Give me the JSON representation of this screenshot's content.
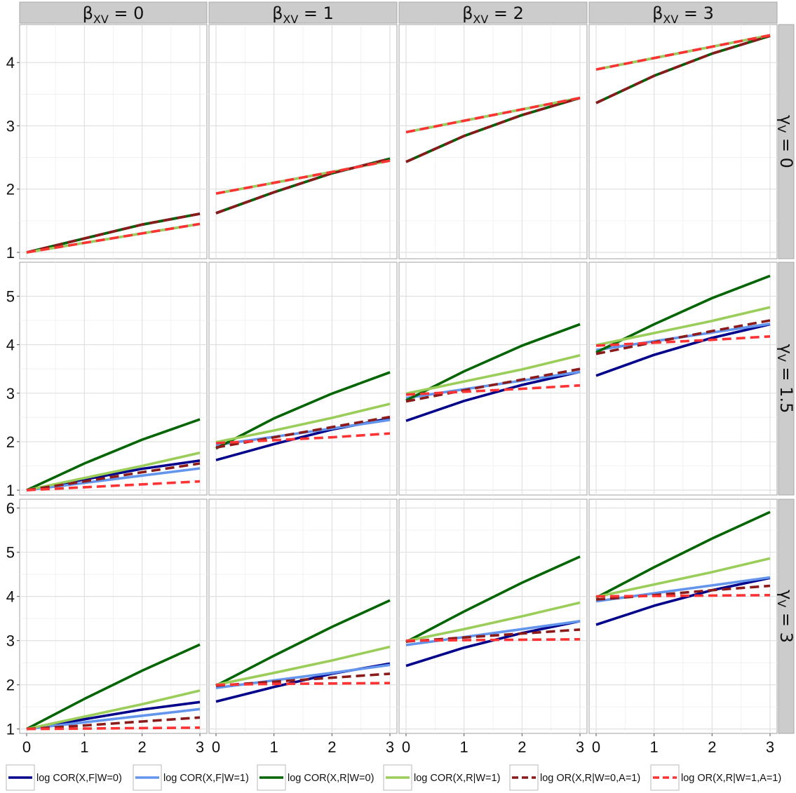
{
  "chart_data": {
    "type": "line",
    "layout": "facet_grid",
    "x": [
      0,
      1,
      2,
      3
    ],
    "xticks": [
      "0",
      "1",
      "2",
      "3"
    ],
    "col_facet": {
      "label_main": "β",
      "label_sub": "XV",
      "levels": [
        "0",
        "1",
        "2",
        "3"
      ]
    },
    "row_facet": {
      "label_main": "γ",
      "label_sub": "V",
      "levels": [
        "0",
        "1.5",
        "3"
      ]
    },
    "rows": [
      {
        "ylim": [
          0.9,
          4.6
        ],
        "yticks": [
          "1",
          "2",
          "3",
          "4"
        ]
      },
      {
        "ylim": [
          0.9,
          5.7
        ],
        "yticks": [
          "1",
          "2",
          "3",
          "4",
          "5"
        ]
      },
      {
        "ylim": [
          0.9,
          6.2
        ],
        "yticks": [
          "1",
          "2",
          "3",
          "4",
          "5",
          "6"
        ]
      }
    ],
    "grid": true,
    "legend_position": "bottom",
    "series": [
      {
        "name": "log COR(X,F|W=0)",
        "color": "#00008b",
        "dash": "solid"
      },
      {
        "name": "log COR(X,F|W=1)",
        "color": "#6495ed",
        "dash": "solid"
      },
      {
        "name": "log COR(X,R|W=0)",
        "color": "#006400",
        "dash": "solid"
      },
      {
        "name": "log COR(X,R|W=1)",
        "color": "#9acd5a",
        "dash": "solid"
      },
      {
        "name": "log OR(X,R|W=0,A=1)",
        "color": "#8b1a1a",
        "dash": "dashed"
      },
      {
        "name": "log OR(X,R|W=1,A=1)",
        "color": "#ff3333",
        "dash": "dashed"
      }
    ],
    "panels": [
      {
        "row": 0,
        "col": 0,
        "values": [
          [
            1.0,
            1.22,
            1.44,
            1.61
          ],
          [
            1.0,
            1.15,
            1.3,
            1.45
          ],
          [
            1.0,
            1.22,
            1.44,
            1.61
          ],
          [
            1.0,
            1.15,
            1.3,
            1.45
          ],
          [
            1.0,
            1.22,
            1.44,
            1.61
          ],
          [
            1.0,
            1.15,
            1.3,
            1.45
          ]
        ]
      },
      {
        "row": 0,
        "col": 1,
        "values": [
          [
            1.62,
            1.95,
            2.25,
            2.48
          ],
          [
            1.93,
            2.1,
            2.27,
            2.45
          ],
          [
            1.62,
            1.95,
            2.25,
            2.48
          ],
          [
            1.93,
            2.1,
            2.27,
            2.45
          ],
          [
            1.62,
            1.95,
            2.25,
            2.48
          ],
          [
            1.93,
            2.1,
            2.27,
            2.45
          ]
        ]
      },
      {
        "row": 0,
        "col": 2,
        "values": [
          [
            2.43,
            2.84,
            3.17,
            3.44
          ],
          [
            2.9,
            3.08,
            3.26,
            3.44
          ],
          [
            2.43,
            2.84,
            3.17,
            3.44
          ],
          [
            2.9,
            3.08,
            3.26,
            3.44
          ],
          [
            2.43,
            2.84,
            3.17,
            3.44
          ],
          [
            2.9,
            3.08,
            3.26,
            3.44
          ]
        ]
      },
      {
        "row": 0,
        "col": 3,
        "values": [
          [
            3.36,
            3.79,
            4.14,
            4.42
          ],
          [
            3.89,
            4.07,
            4.25,
            4.43
          ],
          [
            3.36,
            3.79,
            4.14,
            4.42
          ],
          [
            3.89,
            4.07,
            4.25,
            4.43
          ],
          [
            3.36,
            3.79,
            4.14,
            4.42
          ],
          [
            3.89,
            4.07,
            4.25,
            4.43
          ]
        ]
      },
      {
        "row": 1,
        "col": 0,
        "values": [
          [
            1.0,
            1.22,
            1.44,
            1.61
          ],
          [
            1.0,
            1.15,
            1.3,
            1.45
          ],
          [
            1.0,
            1.55,
            2.04,
            2.46
          ],
          [
            1.0,
            1.25,
            1.5,
            1.77
          ],
          [
            1.0,
            1.18,
            1.37,
            1.55
          ],
          [
            1.0,
            1.06,
            1.12,
            1.18
          ]
        ]
      },
      {
        "row": 1,
        "col": 1,
        "values": [
          [
            1.62,
            1.95,
            2.25,
            2.48
          ],
          [
            1.93,
            2.1,
            2.27,
            2.45
          ],
          [
            1.86,
            2.48,
            2.99,
            3.43
          ],
          [
            1.99,
            2.23,
            2.49,
            2.78
          ],
          [
            1.88,
            2.09,
            2.3,
            2.51
          ],
          [
            1.97,
            2.03,
            2.09,
            2.17
          ]
        ]
      },
      {
        "row": 1,
        "col": 2,
        "values": [
          [
            2.43,
            2.84,
            3.17,
            3.44
          ],
          [
            2.9,
            3.08,
            3.26,
            3.44
          ],
          [
            2.85,
            3.45,
            3.98,
            4.42
          ],
          [
            2.99,
            3.24,
            3.49,
            3.78
          ],
          [
            2.83,
            3.06,
            3.28,
            3.5
          ],
          [
            2.97,
            3.03,
            3.09,
            3.16
          ]
        ]
      },
      {
        "row": 1,
        "col": 3,
        "values": [
          [
            3.36,
            3.79,
            4.14,
            4.42
          ],
          [
            3.89,
            4.07,
            4.25,
            4.43
          ],
          [
            3.84,
            4.42,
            4.96,
            5.42
          ],
          [
            3.99,
            4.24,
            4.49,
            4.77
          ],
          [
            3.81,
            4.05,
            4.28,
            4.5
          ],
          [
            3.98,
            4.04,
            4.1,
            4.17
          ]
        ]
      },
      {
        "row": 2,
        "col": 0,
        "values": [
          [
            1.0,
            1.22,
            1.44,
            1.61
          ],
          [
            1.0,
            1.15,
            1.3,
            1.45
          ],
          [
            1.0,
            1.68,
            2.32,
            2.91
          ],
          [
            1.0,
            1.28,
            1.56,
            1.87
          ],
          [
            1.0,
            1.08,
            1.17,
            1.26
          ],
          [
            1.0,
            1.01,
            1.02,
            1.03
          ]
        ]
      },
      {
        "row": 2,
        "col": 1,
        "values": [
          [
            1.62,
            1.95,
            2.25,
            2.48
          ],
          [
            1.93,
            2.1,
            2.27,
            2.45
          ],
          [
            1.98,
            2.66,
            3.31,
            3.91
          ],
          [
            2.0,
            2.27,
            2.55,
            2.86
          ],
          [
            1.98,
            2.07,
            2.16,
            2.25
          ],
          [
            2.0,
            2.02,
            2.03,
            2.04
          ]
        ]
      },
      {
        "row": 2,
        "col": 2,
        "values": [
          [
            2.43,
            2.84,
            3.17,
            3.44
          ],
          [
            2.9,
            3.08,
            3.26,
            3.44
          ],
          [
            2.97,
            3.66,
            4.31,
            4.9
          ],
          [
            2.99,
            3.26,
            3.55,
            3.86
          ],
          [
            2.98,
            3.07,
            3.16,
            3.25
          ],
          [
            3.0,
            3.01,
            3.02,
            3.03
          ]
        ]
      },
      {
        "row": 2,
        "col": 3,
        "values": [
          [
            3.36,
            3.79,
            4.14,
            4.42
          ],
          [
            3.89,
            4.07,
            4.25,
            4.43
          ],
          [
            3.97,
            4.66,
            5.31,
            5.91
          ],
          [
            3.99,
            4.27,
            4.55,
            4.86
          ],
          [
            3.93,
            4.03,
            4.14,
            4.24
          ],
          [
            4.0,
            4.01,
            4.02,
            4.03
          ]
        ]
      }
    ]
  }
}
